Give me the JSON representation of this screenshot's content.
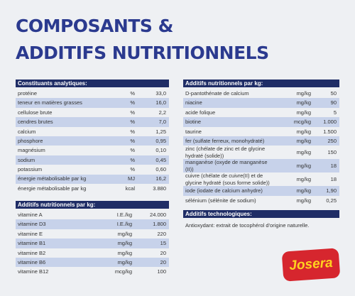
{
  "title": [
    "COMPOSANTS &",
    "ADDITIFS NUTRITIONNELS"
  ],
  "analytical": {
    "header": "Constituants analytiques:",
    "rows": [
      [
        "protéine",
        "%",
        "33,0"
      ],
      [
        "teneur en matières grasses",
        "%",
        "16,0"
      ],
      [
        "cellulose brute",
        "%",
        "2,2"
      ],
      [
        "cendres brutes",
        "%",
        "7,0"
      ],
      [
        "calcium",
        "%",
        "1,25"
      ],
      [
        "phosphore",
        "%",
        "0,95"
      ],
      [
        "magnésium",
        "%",
        "0,10"
      ],
      [
        "sodium",
        "%",
        "0,45"
      ],
      [
        "potassium",
        "%",
        "0,60"
      ],
      [
        "énergie métabolisable par kg",
        "MJ",
        "16,2"
      ],
      [
        "énergie métabolisable par kg",
        "kcal",
        "3.880"
      ]
    ]
  },
  "vitamins": {
    "header": "Additifs nutritionnels par kg:",
    "rows": [
      [
        "vitamine A",
        "I.E./kg",
        "24.000"
      ],
      [
        "vitamine D3",
        "I.E./kg",
        "1.800"
      ],
      [
        "vitamine E",
        "mg/kg",
        "220"
      ],
      [
        "vitamine B1",
        "mg/kg",
        "15"
      ],
      [
        "vitamine B2",
        "mg/kg",
        "20"
      ],
      [
        "vitamine B6",
        "mg/kg",
        "20"
      ],
      [
        "vitamine B12",
        "mcg/kg",
        "100"
      ]
    ]
  },
  "additives": {
    "header": "Additifs nutritionnels par kg:",
    "rows": [
      [
        "D-pantothénate de calcium",
        "mg/kg",
        "50"
      ],
      [
        "niacine",
        "mg/kg",
        "90"
      ],
      [
        "acide folique",
        "mg/kg",
        "5"
      ],
      [
        "biotine",
        "mcg/kg",
        "1.000"
      ],
      [
        "taurine",
        "mg/kg",
        "1.500"
      ],
      [
        "fer (sulfate ferreux, monohydraté)",
        "mg/kg",
        "250"
      ],
      [
        "zinc (chélate de zinc et de glycine hydraté (solide))",
        "mg/kg",
        "150"
      ],
      [
        "manganèse (oxyde de manganèse (II))",
        "mg/kg",
        "18"
      ],
      [
        "cuivre (chélate de cuivre(II) et de glycine hydraté (sous forme solide))",
        "mg/kg",
        "18"
      ],
      [
        "iode (iodate de calcium anhydre)",
        "mg/kg",
        "1,90"
      ],
      [
        "sélénium (sélénite de sodium)",
        "mg/kg",
        "0,25"
      ]
    ]
  },
  "technological": {
    "header": "Additifs technologiques:",
    "text": "Antioxydant: extrait de tocophérol d'origine naturelle."
  },
  "logo": "Josera"
}
